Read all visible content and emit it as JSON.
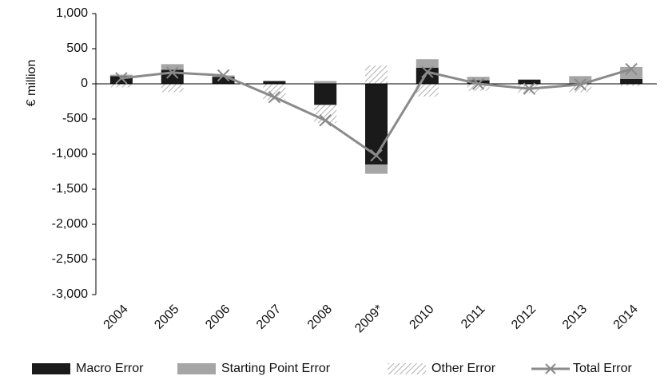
{
  "chart_data": {
    "type": "bar",
    "stacked": true,
    "y_label": "€ million",
    "categories": [
      "2004",
      "2005",
      "2006",
      "2007",
      "2008",
      "2009*",
      "2010",
      "2011",
      "2012",
      "2013",
      "2014"
    ],
    "series": [
      {
        "name": "Macro Error",
        "color": "#1a1a1a",
        "values": [
          110,
          200,
          100,
          40,
          -300,
          -1150,
          230,
          50,
          60,
          0,
          70
        ]
      },
      {
        "name": "Starting Point Error",
        "color": "#a6a6a6",
        "values": [
          20,
          80,
          20,
          0,
          40,
          -130,
          120,
          50,
          0,
          110,
          170
        ]
      },
      {
        "name": "Other Error",
        "color": "#b0b0b0",
        "pattern": "hatch",
        "values": [
          -50,
          -120,
          0,
          -230,
          -260,
          260,
          -180,
          -100,
          -130,
          -120,
          -30
        ]
      },
      {
        "name": "Total Error",
        "type": "line",
        "color": "#8a8a8a",
        "values": [
          80,
          160,
          120,
          -190,
          -520,
          -1020,
          170,
          0,
          -70,
          -10,
          210
        ]
      }
    ],
    "ylim": [
      -3000,
      1000
    ],
    "yticks": [
      {
        "value": 1000,
        "label": "1,000"
      },
      500,
      0,
      -500,
      {
        "value": -1000,
        "label": "-1,000"
      },
      {
        "value": -1500,
        "label": "-1,500"
      },
      {
        "value": -2000,
        "label": "-2,000"
      },
      {
        "value": -2500,
        "label": "-2,500"
      },
      {
        "value": -3000,
        "label": "-3,000"
      }
    ]
  }
}
